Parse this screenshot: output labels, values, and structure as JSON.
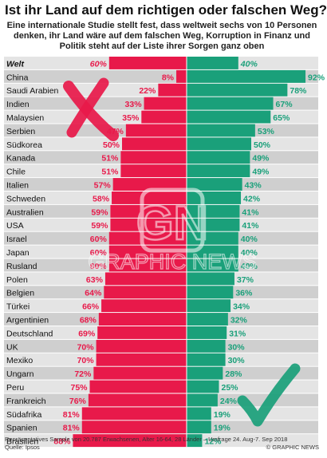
{
  "title": "Ist ihr Land auf dem richtigen oder falschen Weg?",
  "subtitle": "Eine internationale Studie stellt fest, dass weltweit sechs von 10 Personen denken, ihr Land wäre auf dem falschen Weg, Korruption in Finanz und Politik steht auf der Liste ihrer Sorgen ganz oben",
  "footer": {
    "note": "Repräsentatives Sample von 20.787 Erwachsenen, Alter 16-64, 28 Länder – Umfrage 24. Aug-7. Sep 2018",
    "source": "Quelle: Ipsos",
    "credit": "© GRAPHIC NEWS"
  },
  "watermark": {
    "logo": "GN",
    "text": "GRAPHIC NEWS"
  },
  "colors": {
    "wrong": "#e8194a",
    "right": "#1aa07a",
    "row_light": "#e4e4e4",
    "row_dark": "#cfcfcf"
  },
  "icons": {
    "wrong": "cross-mark-icon",
    "right": "check-mark-icon"
  },
  "chart_data": {
    "type": "bar",
    "orientation": "diverging-horizontal",
    "categories": [
      "Welt",
      "China",
      "Saudi Arabien",
      "Indien",
      "Malaysien",
      "Serbien",
      "Südkorea",
      "Kanada",
      "Chile",
      "Italien",
      "Schweden",
      "Australien",
      "USA",
      "Israel",
      "Japan",
      "Rusland",
      "Polen",
      "Belgien",
      "Türkei",
      "Argentinien",
      "Deutschland",
      "UK",
      "Mexiko",
      "Ungarn",
      "Peru",
      "Frankreich",
      "Südafrika",
      "Spanien",
      "Brasilien"
    ],
    "series": [
      {
        "values": [
          60,
          8,
          22,
          33,
          35,
          47,
          50,
          51,
          51,
          57,
          58,
          59,
          59,
          60,
          60,
          60,
          63,
          64,
          66,
          68,
          69,
          70,
          70,
          72,
          75,
          76,
          81,
          81,
          88
        ]
      },
      {
        "values": [
          40,
          92,
          78,
          67,
          65,
          53,
          50,
          49,
          49,
          43,
          42,
          41,
          41,
          40,
          40,
          40,
          37,
          36,
          34,
          32,
          31,
          30,
          30,
          28,
          25,
          24,
          19,
          19,
          12
        ]
      }
    ],
    "value_suffix": "%",
    "xlim": [
      0,
      100
    ],
    "highlight_category": "Welt"
  }
}
